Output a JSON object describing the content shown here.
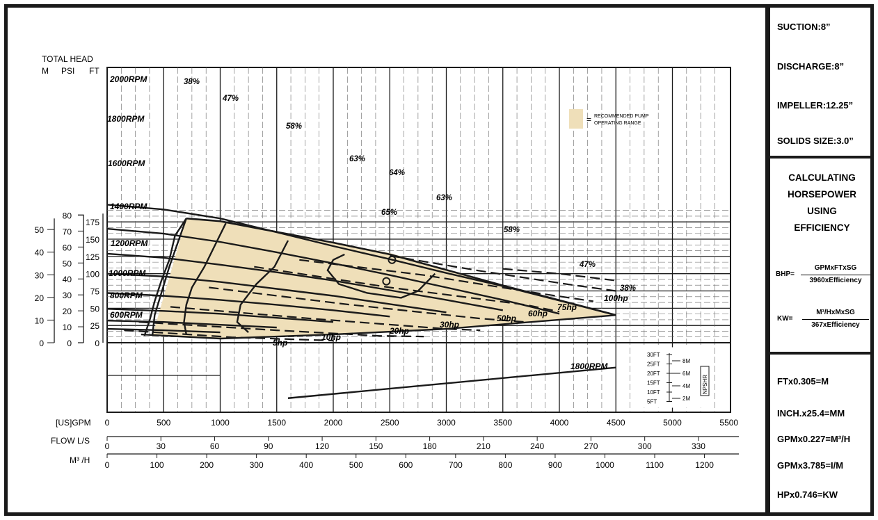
{
  "chart_data": {
    "type": "line",
    "title": "",
    "head_axis_title": "TOTAL HEAD",
    "head_units": {
      "m": "M",
      "psi": "PSI",
      "ft": "FT"
    },
    "ft_ticks": [
      "0",
      "25",
      "50",
      "75",
      "100",
      "125",
      "150",
      "175"
    ],
    "m_ticks": [
      "0",
      "10",
      "20",
      "30",
      "40",
      "50"
    ],
    "psi_ticks": [
      "0",
      "10",
      "20",
      "30",
      "40",
      "50",
      "60",
      "70",
      "80"
    ],
    "gpm_label": "[US]GPM",
    "gpm_ticks": [
      "0",
      "500",
      "1000",
      "1500",
      "2000",
      "2500",
      "3000",
      "3500",
      "4000",
      "4500",
      "5000",
      "5500"
    ],
    "ls_label": "FLOW L/S",
    "ls_ticks": [
      "0",
      "30",
      "60",
      "90",
      "120",
      "150",
      "180",
      "210",
      "240",
      "270",
      "300",
      "330"
    ],
    "m3h_label": "M³ /H",
    "m3h_ticks": [
      "0",
      "100",
      "200",
      "300",
      "400",
      "500",
      "600",
      "700",
      "800",
      "900",
      "1000",
      "1100",
      "1200"
    ],
    "xlim": [
      0,
      5500
    ],
    "ylim": [
      0,
      200
    ],
    "grid": true,
    "speed_curves": [
      {
        "name": "2000RPM",
        "points": [
          [
            0,
            200
          ],
          [
            500,
            193
          ],
          [
            1000,
            180
          ],
          [
            1500,
            160
          ],
          [
            2000,
            140
          ],
          [
            2500,
            121
          ],
          [
            3000,
            101
          ],
          [
            3500,
            82
          ],
          [
            4000,
            61
          ],
          [
            4500,
            40
          ]
        ]
      },
      {
        "name": "1800RPM",
        "points": [
          [
            0,
            165
          ],
          [
            500,
            158
          ],
          [
            1000,
            146
          ],
          [
            1500,
            131
          ],
          [
            2000,
            115
          ],
          [
            2500,
            98
          ],
          [
            3000,
            80
          ],
          [
            3500,
            62
          ],
          [
            4000,
            42
          ]
        ]
      },
      {
        "name": "1600RPM",
        "points": [
          [
            0,
            129
          ],
          [
            500,
            123
          ],
          [
            1000,
            113
          ],
          [
            1500,
            102
          ],
          [
            2000,
            90
          ],
          [
            2500,
            76
          ],
          [
            3000,
            62
          ],
          [
            3500,
            47
          ]
        ]
      },
      {
        "name": "1400RPM",
        "points": [
          [
            0,
            100
          ],
          [
            500,
            96
          ],
          [
            1000,
            88
          ],
          [
            1500,
            78
          ],
          [
            2000,
            68
          ],
          [
            2500,
            56
          ],
          [
            3000,
            44
          ]
        ]
      },
      {
        "name": "1200RPM",
        "points": [
          [
            0,
            72
          ],
          [
            500,
            68
          ],
          [
            1000,
            62
          ],
          [
            1500,
            55
          ],
          [
            2000,
            47
          ],
          [
            2500,
            38
          ]
        ]
      },
      {
        "name": "1000RPM",
        "points": [
          [
            0,
            49
          ],
          [
            500,
            46
          ],
          [
            1000,
            42
          ],
          [
            1500,
            36
          ],
          [
            2000,
            30
          ]
        ]
      },
      {
        "name": "800RPM",
        "points": [
          [
            0,
            32
          ],
          [
            500,
            30
          ],
          [
            1000,
            26
          ],
          [
            1500,
            22
          ]
        ]
      },
      {
        "name": "600RPM",
        "points": [
          [
            0,
            20
          ],
          [
            500,
            18
          ],
          [
            1000,
            15
          ]
        ]
      }
    ],
    "efficiency_labels": [
      "38%",
      "47%",
      "58%",
      "63%",
      "64%",
      "65%",
      "63%",
      "58%",
      "47%",
      "38%"
    ],
    "efficiency_curves": [
      {
        "name": "38%",
        "points": [
          [
            700,
            180
          ],
          [
            600,
            155
          ],
          [
            550,
            120
          ],
          [
            480,
            90
          ],
          [
            420,
            60
          ],
          [
            380,
            35
          ],
          [
            330,
            10
          ]
        ]
      },
      {
        "name": "47%",
        "points": [
          [
            1050,
            173
          ],
          [
            980,
            150
          ],
          [
            860,
            110
          ],
          [
            750,
            80
          ],
          [
            700,
            55
          ],
          [
            680,
            30
          ],
          [
            700,
            12
          ]
        ]
      },
      {
        "name": "58%",
        "points": [
          [
            1600,
            148
          ],
          [
            1480,
            110
          ],
          [
            1320,
            85
          ],
          [
            1180,
            55
          ],
          [
            1150,
            30
          ],
          [
            1250,
            15
          ]
        ]
      },
      {
        "name": "63%",
        "points": [
          [
            2100,
            128
          ],
          [
            2000,
            120
          ],
          [
            1950,
            105
          ],
          [
            2050,
            85
          ],
          [
            2300,
            72
          ],
          [
            2600,
            65
          ],
          [
            2750,
            75
          ],
          [
            2900,
            100
          ]
        ]
      }
    ],
    "hp_lines": [
      {
        "name": "5hp",
        "points": [
          [
            150,
            18
          ],
          [
            1100,
            8
          ],
          [
            2000,
            3
          ]
        ]
      },
      {
        "name": "10hp",
        "points": [
          [
            280,
            30
          ],
          [
            1500,
            18
          ],
          [
            2400,
            10
          ],
          [
            2800,
            9
          ]
        ]
      },
      {
        "name": "20hp",
        "points": [
          [
            560,
            52
          ],
          [
            1800,
            35
          ],
          [
            3000,
            20
          ],
          [
            3300,
            18
          ]
        ]
      },
      {
        "name": "30hp",
        "points": [
          [
            900,
            80
          ],
          [
            2100,
            56
          ],
          [
            3300,
            35
          ],
          [
            3700,
            30
          ]
        ]
      },
      {
        "name": "50hp",
        "points": [
          [
            1300,
            110
          ],
          [
            2500,
            80
          ],
          [
            3700,
            55
          ],
          [
            4000,
            45
          ]
        ]
      },
      {
        "name": "60hp",
        "points": [
          [
            1700,
            120
          ],
          [
            2800,
            98
          ],
          [
            3800,
            72
          ],
          [
            4300,
            60
          ]
        ]
      },
      {
        "name": "75hp",
        "points": [
          [
            2500,
            126
          ],
          [
            3300,
            104
          ],
          [
            4100,
            84
          ],
          [
            4500,
            75
          ]
        ]
      },
      {
        "name": "100hp",
        "points": [
          [
            3500,
            107
          ],
          [
            4000,
            100
          ],
          [
            4500,
            90
          ]
        ]
      }
    ],
    "hp_labels": [
      "5hp",
      "10hp",
      "20hp",
      "30hp",
      "50hp",
      "60hp",
      "75hp",
      "100hp"
    ],
    "operating_range_outline": [
      [
        400,
        10
      ],
      [
        700,
        180
      ],
      [
        1000,
        176
      ],
      [
        2000,
        145
      ],
      [
        2500,
        130
      ],
      [
        3500,
        83
      ],
      [
        4500,
        40
      ],
      [
        4500,
        40
      ],
      [
        3000,
        20
      ],
      [
        2000,
        12
      ],
      [
        1000,
        6
      ],
      [
        400,
        10
      ]
    ],
    "legend_line1": "RECOMMENDED PUMP",
    "legend_line2": "OPERATING RANGE",
    "legend_equals": "=",
    "legend_color": "#efdfb9",
    "npshr": {
      "label": "NPSHR",
      "ft_ticks": [
        "30FT",
        "25FT",
        "20FT",
        "15FT",
        "10FT",
        "5FT"
      ],
      "m_ticks": [
        "8M",
        "6M",
        "4M",
        "2M"
      ],
      "curve_label": "1800RPM",
      "curve_points": [
        [
          1600,
          2.5
        ],
        [
          4500,
          11.5
        ]
      ]
    }
  },
  "specs": [
    "SUCTION:8”",
    "DISCHARGE:8”",
    "IMPELLER:12.25”",
    "SOLIDS SIZE:3.0”"
  ],
  "calc_title": [
    "CALCULATING",
    "HORSEPOWER",
    "USING",
    "EFFICIENCY"
  ],
  "formulas": {
    "bhp_label": "BHP=",
    "bhp_num": "GPMxFTxSG",
    "bhp_den": "3960xEfficiency",
    "kw_label": "KW=",
    "kw_num": "M³/HxMxSG",
    "kw_den": "367xEfficiency"
  },
  "conversions": [
    "FTx0.305=M",
    "INCH.x25.4=MM",
    "GPMx0.227=M³/H",
    "GPMx3.785=I/M",
    "HPx0.746=KW"
  ],
  "colors": {
    "fill": "#efdfb9",
    "line": "#1a1a1a"
  }
}
